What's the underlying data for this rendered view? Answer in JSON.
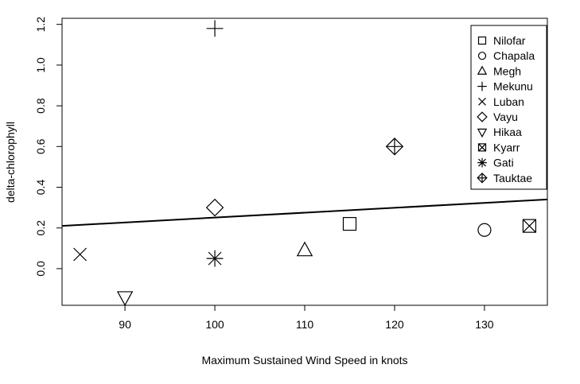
{
  "chart_data": {
    "type": "scatter",
    "xlabel": "Maximum Sustained Wind Speed in knots",
    "ylabel": "delta-chlorophyll",
    "xlim": [
      83,
      137
    ],
    "ylim": [
      -0.18,
      1.23
    ],
    "x_ticks": [
      "90",
      "100",
      "110",
      "120",
      "130"
    ],
    "y_ticks": [
      "0.0",
      "0.2",
      "0.4",
      "0.6",
      "0.8",
      "1.0",
      "1.2"
    ],
    "grid": false,
    "legend_position": "top-right",
    "points": [
      {
        "name": "Nilofar",
        "x": 115,
        "y": 0.22,
        "marker": "square"
      },
      {
        "name": "Chapala",
        "x": 130,
        "y": 0.19,
        "marker": "circle"
      },
      {
        "name": "Megh",
        "x": 110,
        "y": 0.09,
        "marker": "triangle-up"
      },
      {
        "name": "Mekunu",
        "x": 100,
        "y": 1.18,
        "marker": "plus"
      },
      {
        "name": "Luban",
        "x": 85,
        "y": 0.07,
        "marker": "cross"
      },
      {
        "name": "Vayu",
        "x": 100,
        "y": 0.3,
        "marker": "diamond"
      },
      {
        "name": "Hikaa",
        "x": 90,
        "y": -0.14,
        "marker": "triangle-down"
      },
      {
        "name": "Kyarr",
        "x": 135,
        "y": 0.21,
        "marker": "square-cross"
      },
      {
        "name": "Gati",
        "x": 100,
        "y": 0.05,
        "marker": "asterisk"
      },
      {
        "name": "Tauktae",
        "x": 120,
        "y": 0.6,
        "marker": "diamond-plus"
      }
    ],
    "trend_line": {
      "x": [
        83,
        137
      ],
      "y": [
        0.21,
        0.34
      ]
    }
  }
}
